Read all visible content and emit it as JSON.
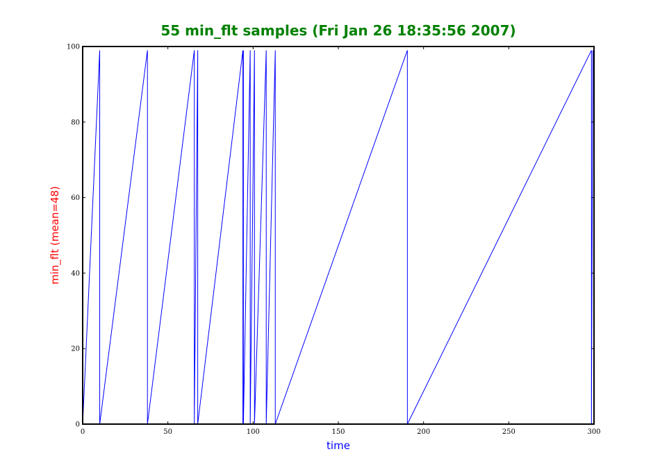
{
  "colors": {
    "title": "#008000",
    "xlabel": "#0000ff",
    "ylabel": "#ff0000",
    "series": "#0000ff",
    "frame": "#000000"
  },
  "chart_data": {
    "type": "line",
    "title": "55 min_flt samples (Fri Jan 26 18:35:56 2007)",
    "xlabel": "time",
    "ylabel": "min_flt (mean=48)",
    "xlim": [
      0,
      300
    ],
    "ylim": [
      0,
      100
    ],
    "xticks": [
      0,
      50,
      100,
      150,
      200,
      250,
      300
    ],
    "xtick_labels": [
      "0",
      "50",
      "100",
      "150",
      "200",
      "250",
      "300"
    ],
    "yticks": [
      0,
      20,
      40,
      60,
      80,
      100
    ],
    "ytick_labels": [
      "0",
      "20",
      "40",
      "60",
      "80",
      "100"
    ],
    "grid": false,
    "series": [
      {
        "x": [
          0,
          10,
          10,
          38,
          38,
          65.5,
          65.5,
          67.5,
          67.5,
          94,
          94,
          94.3,
          94.3,
          98.3,
          98.3,
          100.8,
          100.8,
          107.7,
          107.7,
          113,
          113,
          190.5,
          190.5,
          298.5,
          298.5,
          299.3
        ],
        "y": [
          0,
          99,
          0,
          99,
          0,
          99,
          0,
          99,
          0,
          99,
          0,
          99,
          0,
          99,
          0,
          99,
          0,
          99,
          0,
          99,
          0,
          99,
          0,
          99,
          0,
          99
        ]
      }
    ]
  }
}
